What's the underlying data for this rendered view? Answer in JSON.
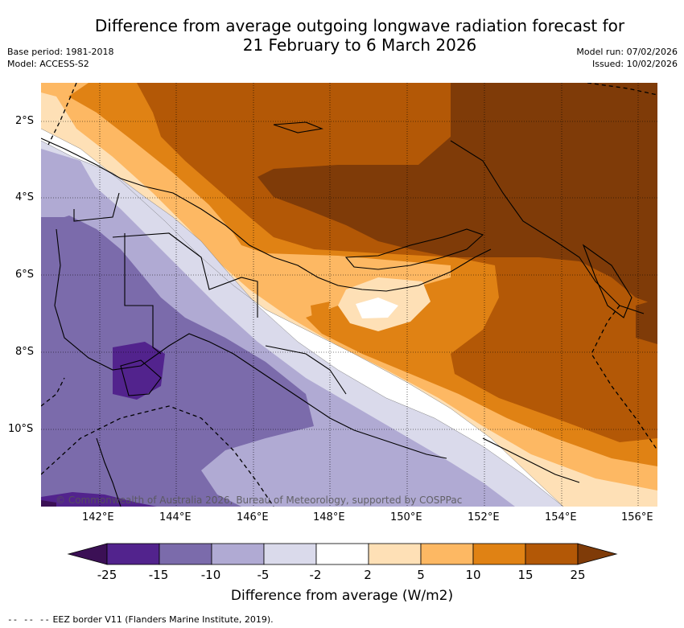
{
  "title_line1": "Difference from average outgoing longwave radiation forecast for",
  "title_line2": "21 February to 6 March 2026",
  "base_period": "Base period: 1981-2018",
  "model": "Model: ACCESS-S2",
  "model_run": "Model run: 07/02/2026",
  "issued": "Issued: 10/02/2026",
  "lat_labels": [
    "2°S",
    "4°S",
    "6°S",
    "8°S",
    "10°S"
  ],
  "lon_labels": [
    "142°E",
    "144°E",
    "146°E",
    "148°E",
    "150°E",
    "152°E",
    "154°E",
    "156°E"
  ],
  "copyright": "© Commonwealth of Australia 2026, Bureau of Meteorology, supported by COSPPac",
  "colorbar": {
    "label": "Difference from average (W/m2)",
    "ticks": [
      "-25",
      "-15",
      "-10",
      "-5",
      "-2",
      "2",
      "5",
      "10",
      "15",
      "25"
    ],
    "colors": [
      "#3b1055",
      "#52238d",
      "#7b6bab",
      "#b0aad3",
      "#dadaeb",
      "#ffffff",
      "#fee0b6",
      "#fdb863",
      "#e08214",
      "#b35806",
      "#7f3b08"
    ]
  },
  "footer_dash": "--  --  --",
  "footer_text": "EEZ border V11 (Flanders Marine Institute, 2019)."
}
